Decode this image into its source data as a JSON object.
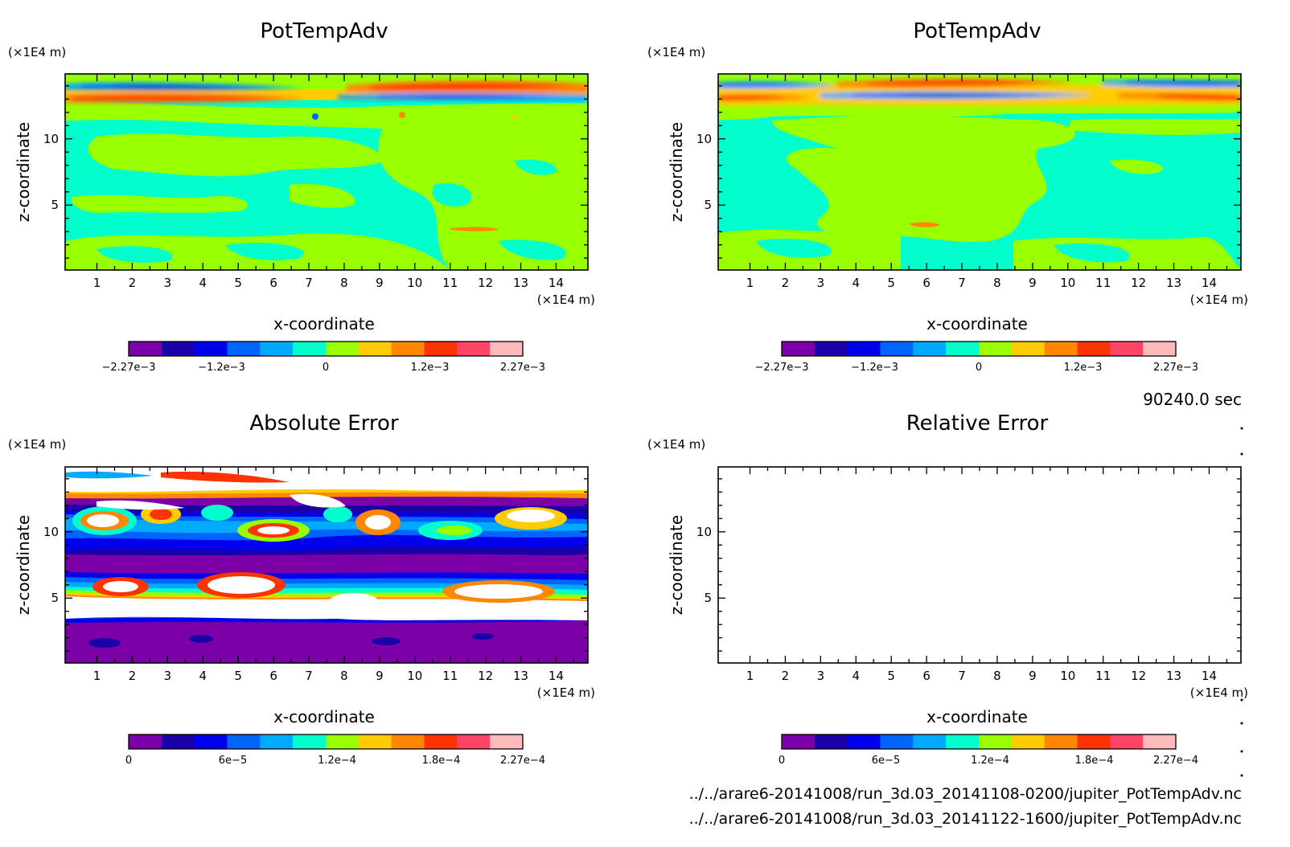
{
  "colors": {
    "levels": [
      "#7b00a8",
      "#1a00a8",
      "#0000ee",
      "#0064ff",
      "#00aaff",
      "#00ffcc",
      "#99ff00",
      "#ffcc00",
      "#ff8800",
      "#ff3300",
      "#ff4466",
      "#ffbbbb"
    ],
    "absolute_error": [
      "#7b00a8",
      "#1a00a8",
      "#0000ee",
      "#0064ff",
      "#00aaff",
      "#00ffcc",
      "#99ff00",
      "#ffcc00",
      "#ff8800",
      "#ff3300",
      "#ff4466",
      "#ffbbbb"
    ],
    "relative_error": [
      "#7b00a8",
      "#1a00a8",
      "#0000ee",
      "#0064ff",
      "#00aaff",
      "#00ffcc",
      "#99ff00",
      "#ffcc00",
      "#ff8800",
      "#ff3300",
      "#ff4466",
      "#ffbbbb"
    ]
  },
  "time_label": "90240.0 sec",
  "files": [
    "../../arare6-20141008/run_3d.03_20141108-0200/jupiter_PotTempAdv.nc",
    "../../arare6-20141008/run_3d.03_20141122-1600/jupiter_PotTempAdv.nc"
  ],
  "chart_data": [
    {
      "type": "heatmap",
      "title": "PotTempAdv",
      "xlabel": "x-coordinate",
      "ylabel": "z-coordinate",
      "x_unit": "(×1E4 m)",
      "y_unit": "(×1E4 m)",
      "xlim": [
        0.1,
        14.9
      ],
      "ylim": [
        0.1,
        14.9
      ],
      "x_ticks": [
        "1",
        "2",
        "3",
        "4",
        "5",
        "6",
        "7",
        "8",
        "9",
        "10",
        "11",
        "12",
        "13",
        "14"
      ],
      "y_ticks": [
        "5",
        "10"
      ],
      "colorbar_labels": [
        "−2.27e−3",
        "−1.2e−3",
        "0",
        "1.2e−3",
        "2.27e−3"
      ],
      "colorbar_range": [
        -0.00227,
        0.00227
      ]
    },
    {
      "type": "heatmap",
      "title": "PotTempAdv",
      "xlabel": "x-coordinate",
      "ylabel": "z-coordinate",
      "x_unit": "(×1E4 m)",
      "y_unit": "(×1E4 m)",
      "xlim": [
        0.1,
        14.9
      ],
      "ylim": [
        0.1,
        14.9
      ],
      "x_ticks": [
        "1",
        "2",
        "3",
        "4",
        "5",
        "6",
        "7",
        "8",
        "9",
        "10",
        "11",
        "12",
        "13",
        "14"
      ],
      "y_ticks": [
        "5",
        "10"
      ],
      "colorbar_labels": [
        "−2.27e−3",
        "−1.2e−3",
        "0",
        "1.2e−3",
        "2.27e−3"
      ],
      "colorbar_range": [
        -0.00227,
        0.00227
      ]
    },
    {
      "type": "heatmap",
      "title": "Absolute Error",
      "xlabel": "x-coordinate",
      "ylabel": "z-coordinate",
      "x_unit": "(×1E4 m)",
      "y_unit": "(×1E4 m)",
      "xlim": [
        0.1,
        14.9
      ],
      "ylim": [
        0.1,
        14.9
      ],
      "x_ticks": [
        "1",
        "2",
        "3",
        "4",
        "5",
        "6",
        "7",
        "8",
        "9",
        "10",
        "11",
        "12",
        "13",
        "14"
      ],
      "y_ticks": [
        "5",
        "10"
      ],
      "colorbar_labels": [
        "0",
        "6e−5",
        "1.2e−4",
        "1.8e−4",
        "2.27e−4"
      ],
      "colorbar_range": [
        0,
        0.000227
      ]
    },
    {
      "type": "heatmap",
      "title": "Relative Error",
      "xlabel": "x-coordinate",
      "ylabel": "z-coordinate",
      "x_unit": "(×1E4 m)",
      "y_unit": "(×1E4 m)",
      "xlim": [
        0.1,
        14.9
      ],
      "ylim": [
        0.1,
        14.9
      ],
      "x_ticks": [
        "1",
        "2",
        "3",
        "4",
        "5",
        "6",
        "7",
        "8",
        "9",
        "10",
        "11",
        "12",
        "13",
        "14"
      ],
      "y_ticks": [
        "5",
        "10"
      ],
      "colorbar_labels": [
        "0",
        "6e−5",
        "1.2e−4",
        "1.8e−4",
        "2.27e−4"
      ],
      "colorbar_range": [
        0,
        0.000227
      ]
    }
  ]
}
